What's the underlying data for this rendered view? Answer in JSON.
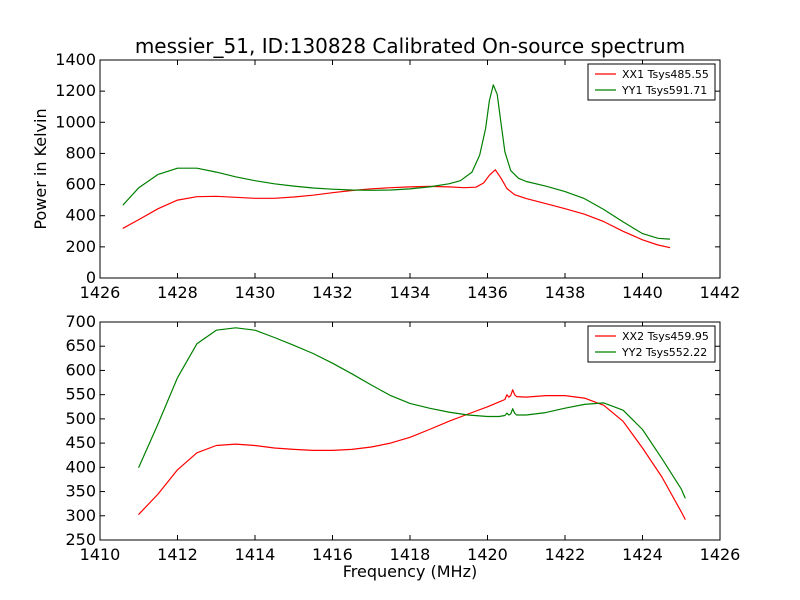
{
  "chart_data": [
    {
      "type": "line",
      "title": "messier_51, ID:130828 Calibrated On-source spectrum",
      "xlabel": "",
      "ylabel": "Power in Kelvin",
      "xlim": [
        1426,
        1442
      ],
      "ylim": [
        0,
        1400
      ],
      "xticks": [
        "1426",
        "1428",
        "1430",
        "1432",
        "1434",
        "1436",
        "1438",
        "1440",
        "1442"
      ],
      "yticks": [
        "0",
        "200",
        "400",
        "600",
        "800",
        "1000",
        "1200",
        "1400"
      ],
      "legend_position": "top-right",
      "grid": false,
      "series": [
        {
          "name": "XX1 Tsys485.55",
          "color": "#ff0000",
          "x": [
            1426.6,
            1427.0,
            1427.5,
            1428.0,
            1428.5,
            1429.0,
            1429.5,
            1430.0,
            1430.5,
            1431.0,
            1431.5,
            1432.0,
            1432.5,
            1433.0,
            1433.5,
            1434.0,
            1434.5,
            1435.0,
            1435.4,
            1435.7,
            1435.9,
            1436.05,
            1436.2,
            1436.35,
            1436.5,
            1436.7,
            1437.0,
            1437.5,
            1438.0,
            1438.5,
            1439.0,
            1439.5,
            1440.0,
            1440.4,
            1440.7
          ],
          "y": [
            320,
            375,
            445,
            500,
            522,
            525,
            518,
            512,
            512,
            520,
            532,
            548,
            562,
            573,
            580,
            585,
            588,
            585,
            580,
            583,
            610,
            660,
            695,
            640,
            575,
            535,
            510,
            478,
            445,
            410,
            362,
            300,
            245,
            212,
            195
          ]
        },
        {
          "name": "YY1 Tsys591.71",
          "color": "#008000",
          "x": [
            1426.6,
            1427.0,
            1427.5,
            1428.0,
            1428.5,
            1429.0,
            1429.5,
            1430.0,
            1430.5,
            1431.0,
            1431.5,
            1432.0,
            1432.5,
            1433.0,
            1433.5,
            1434.0,
            1434.5,
            1435.0,
            1435.3,
            1435.6,
            1435.8,
            1435.95,
            1436.05,
            1436.15,
            1436.25,
            1436.35,
            1436.45,
            1436.6,
            1436.8,
            1437.0,
            1437.5,
            1438.0,
            1438.5,
            1439.0,
            1439.5,
            1440.0,
            1440.4,
            1440.7
          ],
          "y": [
            470,
            580,
            665,
            705,
            705,
            680,
            650,
            625,
            605,
            590,
            578,
            570,
            565,
            563,
            565,
            572,
            585,
            605,
            625,
            680,
            790,
            960,
            1140,
            1240,
            1180,
            990,
            810,
            690,
            640,
            620,
            590,
            555,
            510,
            440,
            360,
            285,
            255,
            250
          ]
        }
      ]
    },
    {
      "type": "line",
      "title": "",
      "xlabel": "Frequency (MHz)",
      "ylabel": "",
      "xlim": [
        1410,
        1426
      ],
      "ylim": [
        250,
        700
      ],
      "xticks": [
        "1410",
        "1412",
        "1414",
        "1416",
        "1418",
        "1420",
        "1422",
        "1424",
        "1426"
      ],
      "yticks": [
        "250",
        "300",
        "350",
        "400",
        "450",
        "500",
        "550",
        "600",
        "650",
        "700"
      ],
      "legend_position": "top-right",
      "grid": false,
      "series": [
        {
          "name": "XX2 Tsys459.95",
          "color": "#ff0000",
          "x": [
            1411.0,
            1411.5,
            1412.0,
            1412.5,
            1413.0,
            1413.5,
            1414.0,
            1414.5,
            1415.0,
            1415.5,
            1416.0,
            1416.5,
            1417.0,
            1417.5,
            1418.0,
            1418.5,
            1419.0,
            1419.5,
            1420.0,
            1420.3,
            1420.45,
            1420.5,
            1420.55,
            1420.6,
            1420.65,
            1420.7,
            1420.75,
            1421.0,
            1421.5,
            1422.0,
            1422.5,
            1423.0,
            1423.5,
            1424.0,
            1424.5,
            1425.0,
            1425.1
          ],
          "y": [
            303,
            345,
            395,
            430,
            445,
            448,
            445,
            440,
            437,
            435,
            435,
            437,
            442,
            450,
            462,
            478,
            495,
            510,
            525,
            535,
            540,
            550,
            545,
            548,
            560,
            550,
            546,
            545,
            548,
            548,
            543,
            528,
            495,
            440,
            380,
            308,
            293
          ]
        },
        {
          "name": "YY2 Tsys552.22",
          "color": "#008000",
          "x": [
            1411.0,
            1411.5,
            1412.0,
            1412.5,
            1413.0,
            1413.5,
            1414.0,
            1414.5,
            1415.0,
            1415.5,
            1416.0,
            1416.5,
            1417.0,
            1417.5,
            1418.0,
            1418.5,
            1419.0,
            1419.5,
            1420.0,
            1420.3,
            1420.45,
            1420.5,
            1420.55,
            1420.6,
            1420.65,
            1420.7,
            1420.75,
            1421.0,
            1421.5,
            1422.0,
            1422.5,
            1423.0,
            1423.5,
            1424.0,
            1424.5,
            1425.0,
            1425.1
          ],
          "y": [
            400,
            490,
            585,
            655,
            683,
            688,
            683,
            668,
            652,
            635,
            615,
            593,
            570,
            548,
            532,
            522,
            514,
            508,
            505,
            505,
            507,
            512,
            508,
            510,
            521,
            512,
            508,
            508,
            513,
            522,
            530,
            533,
            518,
            478,
            418,
            355,
            337
          ]
        }
      ]
    }
  ]
}
